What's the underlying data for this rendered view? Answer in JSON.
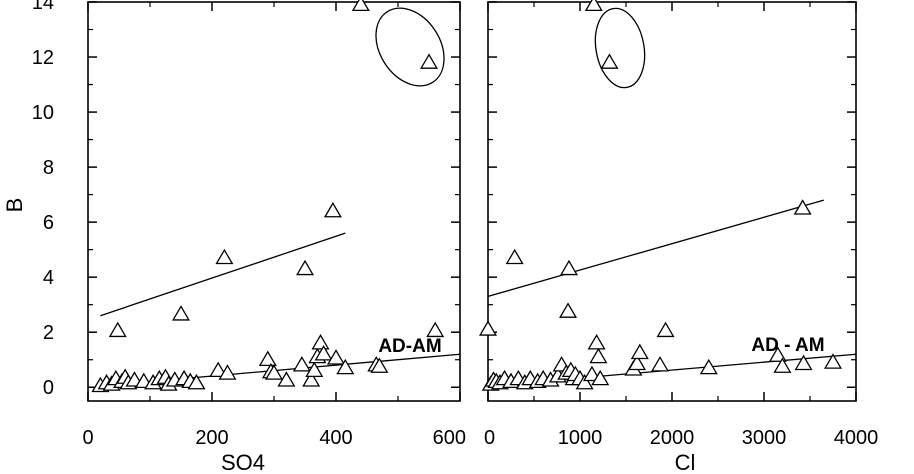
{
  "chart_data": [
    {
      "type": "scatter",
      "xlabel": "SO4",
      "ylabel": "B",
      "xlim": [
        0,
        600
      ],
      "ylim": [
        -0.5,
        14
      ],
      "xticks": [
        0,
        200,
        400,
        600
      ],
      "yticks": [
        0,
        2,
        4,
        6,
        8,
        10,
        12,
        14
      ],
      "marker": "open-triangle",
      "grid": false,
      "annotation": "AD-AM",
      "points": [
        {
          "x": 20,
          "y": 0.05
        },
        {
          "x": 30,
          "y": 0.15
        },
        {
          "x": 38,
          "y": 0.1
        },
        {
          "x": 45,
          "y": 0.3
        },
        {
          "x": 48,
          "y": 2.05
        },
        {
          "x": 55,
          "y": 0.2
        },
        {
          "x": 60,
          "y": 0.35
        },
        {
          "x": 65,
          "y": 0.15
        },
        {
          "x": 75,
          "y": 0.25
        },
        {
          "x": 90,
          "y": 0.2
        },
        {
          "x": 105,
          "y": 0.15
        },
        {
          "x": 115,
          "y": 0.3
        },
        {
          "x": 125,
          "y": 0.35
        },
        {
          "x": 130,
          "y": 0.1
        },
        {
          "x": 140,
          "y": 0.25
        },
        {
          "x": 150,
          "y": 2.65
        },
        {
          "x": 155,
          "y": 0.3
        },
        {
          "x": 165,
          "y": 0.2
        },
        {
          "x": 175,
          "y": 0.15
        },
        {
          "x": 210,
          "y": 0.6
        },
        {
          "x": 220,
          "y": 4.7
        },
        {
          "x": 225,
          "y": 0.5
        },
        {
          "x": 290,
          "y": 1.0
        },
        {
          "x": 295,
          "y": 0.55
        },
        {
          "x": 300,
          "y": 0.5
        },
        {
          "x": 320,
          "y": 0.25
        },
        {
          "x": 345,
          "y": 0.8
        },
        {
          "x": 350,
          "y": 4.3
        },
        {
          "x": 360,
          "y": 0.25
        },
        {
          "x": 365,
          "y": 0.6
        },
        {
          "x": 370,
          "y": 1.1
        },
        {
          "x": 375,
          "y": 1.6
        },
        {
          "x": 380,
          "y": 1.2
        },
        {
          "x": 395,
          "y": 6.4
        },
        {
          "x": 400,
          "y": 1.05
        },
        {
          "x": 415,
          "y": 0.7
        },
        {
          "x": 440,
          "y": 13.9
        },
        {
          "x": 465,
          "y": 0.8
        },
        {
          "x": 470,
          "y": 0.75
        },
        {
          "x": 550,
          "y": 11.8
        },
        {
          "x": 560,
          "y": 2.05
        }
      ],
      "trend_lines": [
        {
          "x1": 20,
          "y1": 2.6,
          "x2": 415,
          "y2": 5.6
        },
        {
          "x1": 20,
          "y1": 0.05,
          "x2": 600,
          "y2": 1.2
        }
      ]
    },
    {
      "type": "scatter",
      "xlabel": "Cl",
      "ylabel": "",
      "xlim": [
        0,
        4000
      ],
      "ylim": [
        -0.5,
        14
      ],
      "xticks": [
        0,
        1000,
        2000,
        3000,
        4000
      ],
      "yticks": [
        0,
        2,
        4,
        6,
        8,
        10,
        12,
        14
      ],
      "marker": "open-triangle",
      "grid": false,
      "annotation": "AD - AM",
      "points": [
        {
          "x": 0,
          "y": 2.1
        },
        {
          "x": 30,
          "y": 0.1
        },
        {
          "x": 60,
          "y": 0.25
        },
        {
          "x": 90,
          "y": 0.2
        },
        {
          "x": 130,
          "y": 0.15
        },
        {
          "x": 180,
          "y": 0.3
        },
        {
          "x": 250,
          "y": 0.2
        },
        {
          "x": 290,
          "y": 4.7
        },
        {
          "x": 330,
          "y": 0.3
        },
        {
          "x": 400,
          "y": 0.15
        },
        {
          "x": 460,
          "y": 0.3
        },
        {
          "x": 540,
          "y": 0.2
        },
        {
          "x": 600,
          "y": 0.3
        },
        {
          "x": 680,
          "y": 0.25
        },
        {
          "x": 760,
          "y": 0.4
        },
        {
          "x": 800,
          "y": 0.8
        },
        {
          "x": 850,
          "y": 0.5
        },
        {
          "x": 870,
          "y": 2.75
        },
        {
          "x": 880,
          "y": 4.3
        },
        {
          "x": 900,
          "y": 0.6
        },
        {
          "x": 930,
          "y": 0.3
        },
        {
          "x": 950,
          "y": 0.45
        },
        {
          "x": 1000,
          "y": 0.3
        },
        {
          "x": 1050,
          "y": 0.15
        },
        {
          "x": 1130,
          "y": 0.45
        },
        {
          "x": 1150,
          "y": 13.9
        },
        {
          "x": 1180,
          "y": 1.6
        },
        {
          "x": 1200,
          "y": 1.1
        },
        {
          "x": 1220,
          "y": 0.3
        },
        {
          "x": 1320,
          "y": 11.8
        },
        {
          "x": 1580,
          "y": 0.65
        },
        {
          "x": 1620,
          "y": 0.85
        },
        {
          "x": 1650,
          "y": 1.25
        },
        {
          "x": 1870,
          "y": 0.8
        },
        {
          "x": 1930,
          "y": 2.05
        },
        {
          "x": 2400,
          "y": 0.7
        },
        {
          "x": 3150,
          "y": 1.15
        },
        {
          "x": 3200,
          "y": 0.75
        },
        {
          "x": 3420,
          "y": 6.5
        },
        {
          "x": 3430,
          "y": 0.85
        },
        {
          "x": 3750,
          "y": 0.9
        }
      ],
      "trend_lines": [
        {
          "x1": 0,
          "y1": 3.3,
          "x2": 3650,
          "y2": 6.8
        },
        {
          "x1": 0,
          "y1": 0.05,
          "x2": 4000,
          "y2": 1.2
        }
      ]
    }
  ]
}
